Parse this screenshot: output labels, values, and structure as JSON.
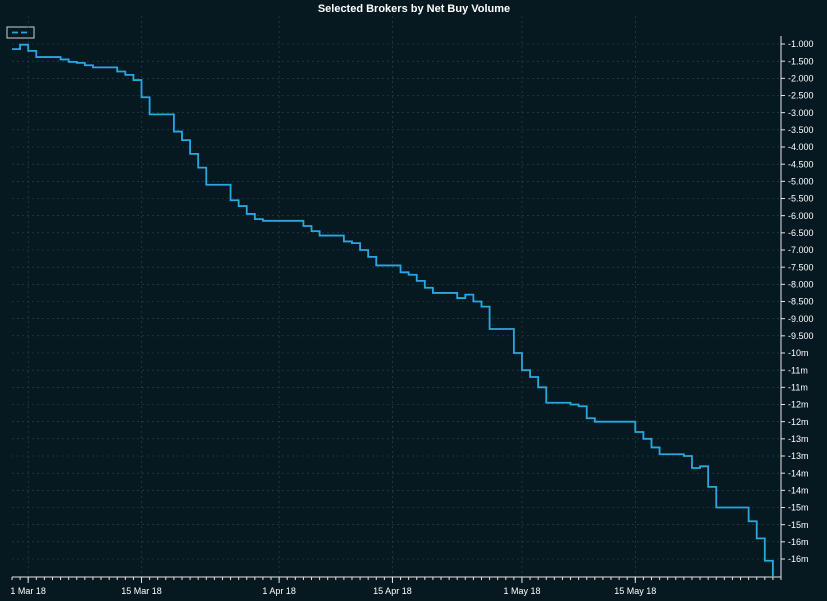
{
  "chart_data": {
    "type": "line",
    "title": "Selected Brokers by Net Buy Volume",
    "colors": {
      "background": "#061820",
      "series": "#29a8e0",
      "grid": "#2a4a50",
      "axis": "#e6e6e6",
      "text": "#ffffff"
    },
    "grid": true,
    "legend": {
      "placement": "top-left",
      "entries": [
        ""
      ]
    },
    "y_axis": {
      "side": "right",
      "range": [
        -16.3,
        -0.85
      ],
      "tick_values": [
        -1,
        -1.5,
        -2,
        -2.5,
        -3,
        -3.5,
        -4,
        -4.5,
        -5,
        -5.5,
        -6,
        -6.5,
        -7,
        -7.5,
        -8,
        -8.5,
        -9,
        -9.5,
        -10,
        -10.5,
        -11,
        -11.5,
        -12,
        -12.5,
        -13,
        -13.5,
        -14,
        -14.5,
        -15,
        -15.5,
        -16
      ],
      "tick_labels": [
        "-1.000",
        "-1.500",
        "-2.000",
        "-2.500",
        "-3.000",
        "-3.500",
        "-4.000",
        "-4.500",
        "-5.000",
        "-5.500",
        "-6.000",
        "-6.500",
        "-7.000",
        "-7.500",
        "-8.000",
        "-8.500",
        "-9.000",
        "-9.500",
        "-10m",
        "-11m",
        "-11m",
        "-12m",
        "-12m",
        "-13m",
        "-13m",
        "-14m",
        "-14m",
        "-15m",
        "-15m",
        "-16m",
        "-16m"
      ]
    },
    "x_axis": {
      "range": [
        "2018-02-27",
        "2018-06-02"
      ],
      "tick_values": [
        "2018-03-01",
        "2018-03-15",
        "2018-04-01",
        "2018-04-15",
        "2018-05-01",
        "2018-05-15"
      ],
      "tick_labels": [
        "1 Mar 18",
        "15 Mar 18",
        "1 Apr 18",
        "15 Apr 18",
        "1 May 18",
        "15 May 18"
      ]
    },
    "series": [
      {
        "name": "",
        "step": true,
        "points": [
          [
            "2018-02-27",
            -1.15
          ],
          [
            "2018-02-28",
            -1.02
          ],
          [
            "2018-03-01",
            -1.2
          ],
          [
            "2018-03-02",
            -1.38
          ],
          [
            "2018-03-05",
            -1.45
          ],
          [
            "2018-03-06",
            -1.52
          ],
          [
            "2018-03-07",
            -1.55
          ],
          [
            "2018-03-08",
            -1.62
          ],
          [
            "2018-03-09",
            -1.68
          ],
          [
            "2018-03-12",
            -1.8
          ],
          [
            "2018-03-13",
            -1.9
          ],
          [
            "2018-03-14",
            -2.05
          ],
          [
            "2018-03-15",
            -2.55
          ],
          [
            "2018-03-16",
            -3.05
          ],
          [
            "2018-03-19",
            -3.55
          ],
          [
            "2018-03-20",
            -3.8
          ],
          [
            "2018-03-21",
            -4.2
          ],
          [
            "2018-03-22",
            -4.6
          ],
          [
            "2018-03-23",
            -5.1
          ],
          [
            "2018-03-26",
            -5.55
          ],
          [
            "2018-03-27",
            -5.72
          ],
          [
            "2018-03-28",
            -5.95
          ],
          [
            "2018-03-29",
            -6.1
          ],
          [
            "2018-03-30",
            -6.15
          ],
          [
            "2018-04-02",
            -6.15
          ],
          [
            "2018-04-03",
            -6.15
          ],
          [
            "2018-04-04",
            -6.3
          ],
          [
            "2018-04-05",
            -6.45
          ],
          [
            "2018-04-06",
            -6.58
          ],
          [
            "2018-04-09",
            -6.75
          ],
          [
            "2018-04-10",
            -6.8
          ],
          [
            "2018-04-11",
            -7.0
          ],
          [
            "2018-04-12",
            -7.2
          ],
          [
            "2018-04-13",
            -7.45
          ],
          [
            "2018-04-16",
            -7.65
          ],
          [
            "2018-04-17",
            -7.72
          ],
          [
            "2018-04-18",
            -7.9
          ],
          [
            "2018-04-19",
            -8.1
          ],
          [
            "2018-04-20",
            -8.25
          ],
          [
            "2018-04-23",
            -8.4
          ],
          [
            "2018-04-24",
            -8.3
          ],
          [
            "2018-04-25",
            -8.5
          ],
          [
            "2018-04-26",
            -8.65
          ],
          [
            "2018-04-27",
            -9.3
          ],
          [
            "2018-04-30",
            -10.0
          ],
          [
            "2018-05-01",
            -10.5
          ],
          [
            "2018-05-02",
            -10.7
          ],
          [
            "2018-05-03",
            -11.0
          ],
          [
            "2018-05-04",
            -11.45
          ],
          [
            "2018-05-07",
            -11.5
          ],
          [
            "2018-05-08",
            -11.55
          ],
          [
            "2018-05-09",
            -11.9
          ],
          [
            "2018-05-10",
            -12.0
          ],
          [
            "2018-05-11",
            -12.0
          ],
          [
            "2018-05-14",
            -12.0
          ],
          [
            "2018-05-15",
            -12.3
          ],
          [
            "2018-05-16",
            -12.5
          ],
          [
            "2018-05-17",
            -12.75
          ],
          [
            "2018-05-18",
            -12.95
          ],
          [
            "2018-05-21",
            -13.0
          ],
          [
            "2018-05-22",
            -13.35
          ],
          [
            "2018-05-23",
            -13.3
          ],
          [
            "2018-05-24",
            -13.9
          ],
          [
            "2018-05-25",
            -14.5
          ],
          [
            "2018-05-28",
            -14.5
          ],
          [
            "2018-05-29",
            -14.9
          ],
          [
            "2018-05-30",
            -15.4
          ],
          [
            "2018-05-31",
            -16.05
          ],
          [
            "2018-06-01",
            -16.5
          ]
        ]
      }
    ]
  }
}
